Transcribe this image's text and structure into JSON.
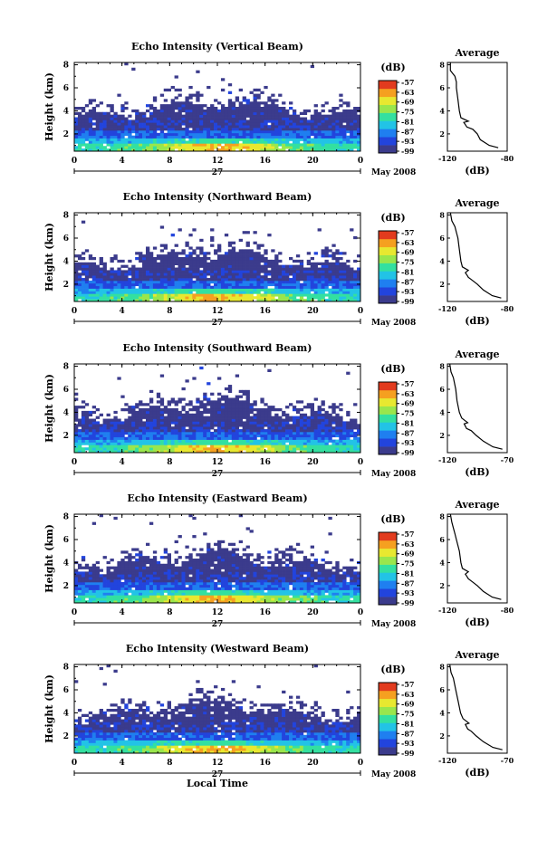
{
  "chart_data": [
    {
      "type": "heatmap",
      "title": "Echo Intensity (Vertical Beam)",
      "ylabel": "Height (km)",
      "x_ticks": [
        "0",
        "4",
        "8",
        "12",
        "16",
        "20",
        "0"
      ],
      "y_ticks": [
        "2",
        "4",
        "6",
        "8"
      ],
      "date_day": "27",
      "date_month": "May 2008",
      "colorbar_unit": "(dB)",
      "colorbar_labels": [
        "-57",
        "-63",
        "-69",
        "-75",
        "-81",
        "-87",
        "-93",
        "-99"
      ],
      "xlim": [
        0,
        24
      ],
      "ylim": [
        0.5,
        8.2
      ],
      "profile": {
        "title": "Average",
        "xlabel": "(dB)",
        "x_ticks": [
          "-120",
          "-80"
        ],
        "y_ticks": [
          "2",
          "4",
          "6",
          "8"
        ],
        "xlim": [
          -120,
          -80
        ],
        "ylim": [
          0.5,
          8.2
        ],
        "x": [
          -86,
          -92,
          -98,
          -100,
          -103,
          -107,
          -108,
          -109,
          -106,
          -111,
          -112,
          -113,
          -114,
          -114,
          -115,
          -118,
          -118
        ],
        "y": [
          0.8,
          1.0,
          1.5,
          2.0,
          2.4,
          2.6,
          2.8,
          3.0,
          3.1,
          3.4,
          4.0,
          5.0,
          6.0,
          6.5,
          7.0,
          7.5,
          8.2
        ]
      }
    },
    {
      "type": "heatmap",
      "title": "Echo Intensity (Northward Beam)",
      "ylabel": "Height (km)",
      "x_ticks": [
        "0",
        "4",
        "8",
        "12",
        "16",
        "20",
        "0"
      ],
      "y_ticks": [
        "2",
        "4",
        "6",
        "8"
      ],
      "date_day": "27",
      "date_month": "May 2008",
      "colorbar_unit": "(dB)",
      "colorbar_labels": [
        "-57",
        "-63",
        "-69",
        "-75",
        "-81",
        "-87",
        "-93",
        "-99"
      ],
      "xlim": [
        0,
        24
      ],
      "ylim": [
        0.5,
        8.2
      ],
      "profile": {
        "title": "Average",
        "xlabel": "(dB)",
        "x_ticks": [
          "-120",
          "-80"
        ],
        "y_ticks": [
          "2",
          "4",
          "6",
          "8"
        ],
        "xlim": [
          -120,
          -80
        ],
        "ylim": [
          0.5,
          8.2
        ],
        "x": [
          -84,
          -90,
          -96,
          -100,
          -104,
          -106,
          -107,
          -108,
          -106,
          -110,
          -111,
          -112,
          -113,
          -114,
          -115,
          -117,
          -118
        ],
        "y": [
          0.8,
          1.0,
          1.5,
          2.0,
          2.4,
          2.6,
          2.8,
          3.0,
          3.2,
          3.5,
          4.0,
          5.0,
          6.0,
          6.5,
          7.0,
          7.5,
          8.2
        ]
      }
    },
    {
      "type": "heatmap",
      "title": "Echo Intensity (Southward Beam)",
      "ylabel": "Height (km)",
      "x_ticks": [
        "0",
        "4",
        "8",
        "12",
        "16",
        "20",
        "0"
      ],
      "y_ticks": [
        "2",
        "4",
        "6",
        "8"
      ],
      "date_day": "27",
      "date_month": "May 2008",
      "colorbar_unit": "(dB)",
      "colorbar_labels": [
        "-57",
        "-63",
        "-69",
        "-75",
        "-81",
        "-87",
        "-93",
        "-99"
      ],
      "xlim": [
        0,
        24
      ],
      "ylim": [
        0.5,
        8.2
      ],
      "profile": {
        "title": "Average",
        "xlabel": "(dB)",
        "x_ticks": [
          "-120",
          "-70"
        ],
        "y_ticks": [
          "2",
          "4",
          "6",
          "8"
        ],
        "xlim": [
          -120,
          -70
        ],
        "ylim": [
          0.5,
          8.2
        ],
        "x": [
          -74,
          -82,
          -90,
          -96,
          -100,
          -104,
          -105,
          -106,
          -103,
          -108,
          -110,
          -112,
          -113,
          -114,
          -115,
          -117,
          -118
        ],
        "y": [
          0.8,
          1.0,
          1.5,
          2.0,
          2.4,
          2.6,
          2.8,
          3.0,
          3.1,
          3.5,
          4.0,
          5.0,
          6.0,
          6.5,
          7.0,
          7.5,
          8.2
        ]
      }
    },
    {
      "type": "heatmap",
      "title": "Echo Intensity (Eastward Beam)",
      "ylabel": "Height (km)",
      "x_ticks": [
        "0",
        "4",
        "8",
        "12",
        "16",
        "20",
        "0"
      ],
      "y_ticks": [
        "2",
        "4",
        "6",
        "8"
      ],
      "date_day": "27",
      "date_month": "May 2008",
      "colorbar_unit": "(dB)",
      "colorbar_labels": [
        "-57",
        "-63",
        "-69",
        "-75",
        "-81",
        "-87",
        "-93",
        "-99"
      ],
      "xlim": [
        0,
        24
      ],
      "ylim": [
        0.5,
        8.2
      ],
      "profile": {
        "title": "Average",
        "xlabel": "(dB)",
        "x_ticks": [
          "-120",
          "-80"
        ],
        "y_ticks": [
          "2",
          "4",
          "6",
          "8"
        ],
        "xlim": [
          -120,
          -80
        ],
        "ylim": [
          0.5,
          8.2
        ],
        "x": [
          -84,
          -90,
          -96,
          -100,
          -104,
          -106,
          -107,
          -108,
          -106,
          -110,
          -111,
          -112,
          -114,
          -115,
          -116,
          -117,
          -118
        ],
        "y": [
          0.8,
          1.0,
          1.5,
          2.0,
          2.4,
          2.6,
          2.8,
          3.0,
          3.2,
          3.5,
          4.0,
          5.0,
          6.0,
          6.5,
          7.0,
          7.5,
          8.2
        ]
      }
    },
    {
      "type": "heatmap",
      "title": "Echo Intensity (Westward Beam)",
      "ylabel": "Height (km)",
      "x_ticks": [
        "0",
        "4",
        "8",
        "12",
        "16",
        "20",
        "0"
      ],
      "y_ticks": [
        "2",
        "4",
        "6",
        "8"
      ],
      "date_day": "27",
      "date_month": "May 2008",
      "colorbar_unit": "(dB)",
      "colorbar_labels": [
        "-57",
        "-63",
        "-69",
        "-75",
        "-81",
        "-87",
        "-93",
        "-99"
      ],
      "xlim": [
        0,
        24
      ],
      "ylim": [
        0.5,
        8.2
      ],
      "xlabel": "Local Time",
      "profile": {
        "title": "Average",
        "xlabel": "(dB)",
        "x_ticks": [
          "-120",
          "-70"
        ],
        "y_ticks": [
          "2",
          "4",
          "6",
          "8"
        ],
        "xlim": [
          -120,
          -70
        ],
        "ylim": [
          0.5,
          8.2
        ],
        "x": [
          -74,
          -82,
          -90,
          -96,
          -100,
          -103,
          -104,
          -105,
          -102,
          -107,
          -109,
          -111,
          -113,
          -114,
          -115,
          -117,
          -118
        ],
        "y": [
          0.8,
          1.0,
          1.5,
          2.0,
          2.4,
          2.6,
          2.8,
          3.0,
          3.1,
          3.5,
          4.0,
          5.0,
          6.0,
          6.5,
          7.0,
          7.5,
          8.2
        ]
      }
    }
  ],
  "colors": {
    "colormap": [
      "#3b3b8c",
      "#2244dd",
      "#1f7ff0",
      "#22c3e6",
      "#33e0a0",
      "#99e64c",
      "#e8e830",
      "#f5a020",
      "#e23b1e"
    ]
  }
}
